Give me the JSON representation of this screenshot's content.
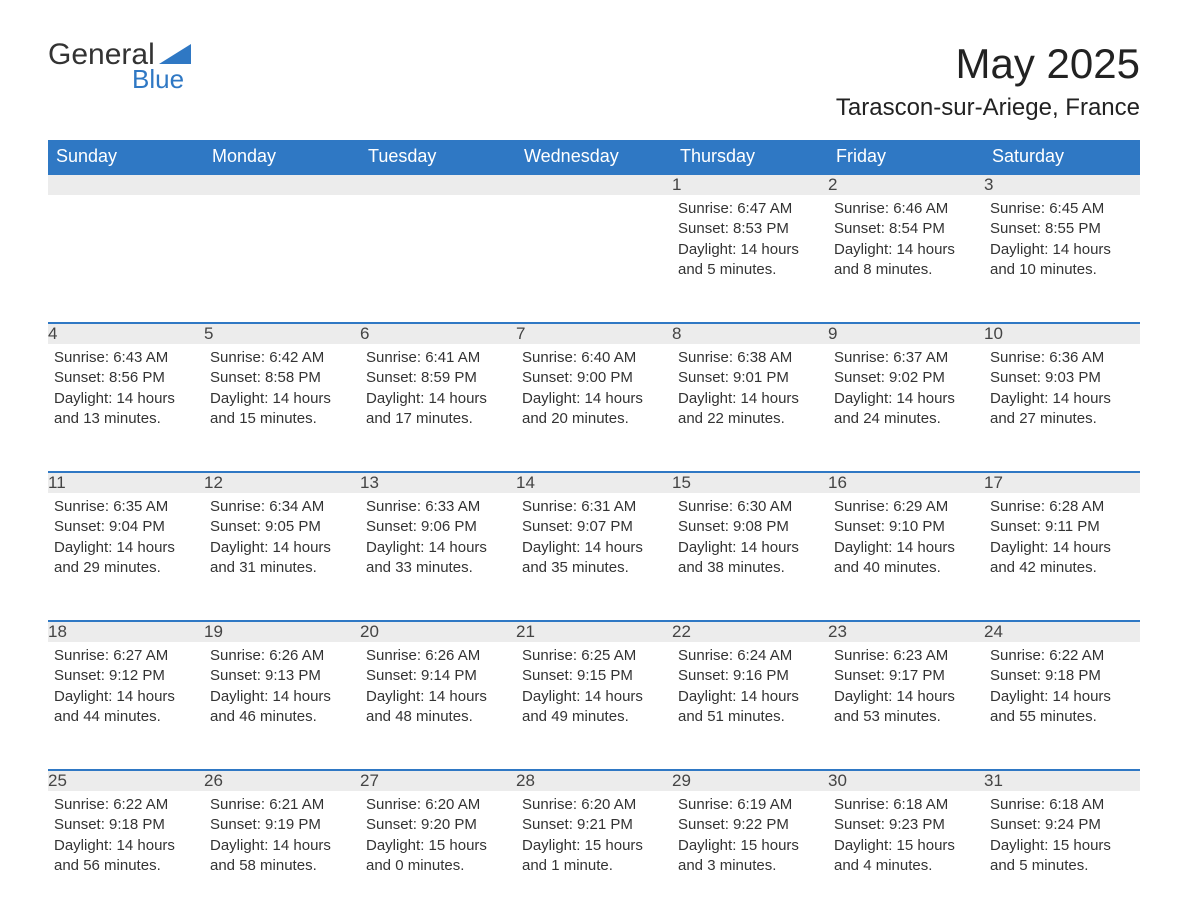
{
  "logo": {
    "text1": "General",
    "text2": "Blue",
    "tri_color": "#2f78c4"
  },
  "title": "May 2025",
  "location": "Tarascon-sur-Ariege, France",
  "colors": {
    "header_bg": "#2f78c4",
    "header_text": "#ffffff",
    "daynum_bg": "#ececec",
    "daynum_border": "#2f78c4",
    "body_text": "#333333",
    "background": "#ffffff"
  },
  "day_headers": [
    "Sunday",
    "Monday",
    "Tuesday",
    "Wednesday",
    "Thursday",
    "Friday",
    "Saturday"
  ],
  "weeks": [
    [
      null,
      null,
      null,
      null,
      {
        "n": "1",
        "sunrise": "6:47 AM",
        "sunset": "8:53 PM",
        "daylight": "14 hours and 5 minutes."
      },
      {
        "n": "2",
        "sunrise": "6:46 AM",
        "sunset": "8:54 PM",
        "daylight": "14 hours and 8 minutes."
      },
      {
        "n": "3",
        "sunrise": "6:45 AM",
        "sunset": "8:55 PM",
        "daylight": "14 hours and 10 minutes."
      }
    ],
    [
      {
        "n": "4",
        "sunrise": "6:43 AM",
        "sunset": "8:56 PM",
        "daylight": "14 hours and 13 minutes."
      },
      {
        "n": "5",
        "sunrise": "6:42 AM",
        "sunset": "8:58 PM",
        "daylight": "14 hours and 15 minutes."
      },
      {
        "n": "6",
        "sunrise": "6:41 AM",
        "sunset": "8:59 PM",
        "daylight": "14 hours and 17 minutes."
      },
      {
        "n": "7",
        "sunrise": "6:40 AM",
        "sunset": "9:00 PM",
        "daylight": "14 hours and 20 minutes."
      },
      {
        "n": "8",
        "sunrise": "6:38 AM",
        "sunset": "9:01 PM",
        "daylight": "14 hours and 22 minutes."
      },
      {
        "n": "9",
        "sunrise": "6:37 AM",
        "sunset": "9:02 PM",
        "daylight": "14 hours and 24 minutes."
      },
      {
        "n": "10",
        "sunrise": "6:36 AM",
        "sunset": "9:03 PM",
        "daylight": "14 hours and 27 minutes."
      }
    ],
    [
      {
        "n": "11",
        "sunrise": "6:35 AM",
        "sunset": "9:04 PM",
        "daylight": "14 hours and 29 minutes."
      },
      {
        "n": "12",
        "sunrise": "6:34 AM",
        "sunset": "9:05 PM",
        "daylight": "14 hours and 31 minutes."
      },
      {
        "n": "13",
        "sunrise": "6:33 AM",
        "sunset": "9:06 PM",
        "daylight": "14 hours and 33 minutes."
      },
      {
        "n": "14",
        "sunrise": "6:31 AM",
        "sunset": "9:07 PM",
        "daylight": "14 hours and 35 minutes."
      },
      {
        "n": "15",
        "sunrise": "6:30 AM",
        "sunset": "9:08 PM",
        "daylight": "14 hours and 38 minutes."
      },
      {
        "n": "16",
        "sunrise": "6:29 AM",
        "sunset": "9:10 PM",
        "daylight": "14 hours and 40 minutes."
      },
      {
        "n": "17",
        "sunrise": "6:28 AM",
        "sunset": "9:11 PM",
        "daylight": "14 hours and 42 minutes."
      }
    ],
    [
      {
        "n": "18",
        "sunrise": "6:27 AM",
        "sunset": "9:12 PM",
        "daylight": "14 hours and 44 minutes."
      },
      {
        "n": "19",
        "sunrise": "6:26 AM",
        "sunset": "9:13 PM",
        "daylight": "14 hours and 46 minutes."
      },
      {
        "n": "20",
        "sunrise": "6:26 AM",
        "sunset": "9:14 PM",
        "daylight": "14 hours and 48 minutes."
      },
      {
        "n": "21",
        "sunrise": "6:25 AM",
        "sunset": "9:15 PM",
        "daylight": "14 hours and 49 minutes."
      },
      {
        "n": "22",
        "sunrise": "6:24 AM",
        "sunset": "9:16 PM",
        "daylight": "14 hours and 51 minutes."
      },
      {
        "n": "23",
        "sunrise": "6:23 AM",
        "sunset": "9:17 PM",
        "daylight": "14 hours and 53 minutes."
      },
      {
        "n": "24",
        "sunrise": "6:22 AM",
        "sunset": "9:18 PM",
        "daylight": "14 hours and 55 minutes."
      }
    ],
    [
      {
        "n": "25",
        "sunrise": "6:22 AM",
        "sunset": "9:18 PM",
        "daylight": "14 hours and 56 minutes."
      },
      {
        "n": "26",
        "sunrise": "6:21 AM",
        "sunset": "9:19 PM",
        "daylight": "14 hours and 58 minutes."
      },
      {
        "n": "27",
        "sunrise": "6:20 AM",
        "sunset": "9:20 PM",
        "daylight": "15 hours and 0 minutes."
      },
      {
        "n": "28",
        "sunrise": "6:20 AM",
        "sunset": "9:21 PM",
        "daylight": "15 hours and 1 minute."
      },
      {
        "n": "29",
        "sunrise": "6:19 AM",
        "sunset": "9:22 PM",
        "daylight": "15 hours and 3 minutes."
      },
      {
        "n": "30",
        "sunrise": "6:18 AM",
        "sunset": "9:23 PM",
        "daylight": "15 hours and 4 minutes."
      },
      {
        "n": "31",
        "sunrise": "6:18 AM",
        "sunset": "9:24 PM",
        "daylight": "15 hours and 5 minutes."
      }
    ]
  ],
  "labels": {
    "sunrise": "Sunrise:",
    "sunset": "Sunset:",
    "daylight": "Daylight:"
  }
}
